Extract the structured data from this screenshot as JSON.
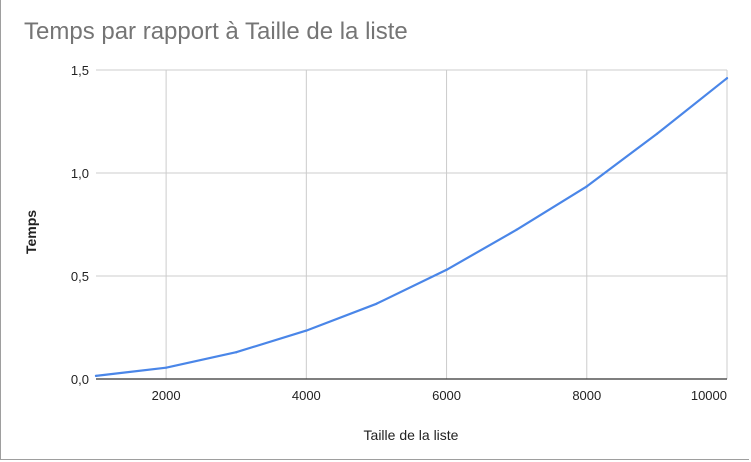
{
  "chart_data": {
    "type": "line",
    "title": "Temps par rapport à Taille de la liste",
    "xlabel": "Taille de la liste",
    "ylabel": "Temps",
    "xlim": [
      1000,
      10000
    ],
    "ylim": [
      0,
      1.5
    ],
    "x_ticks": [
      2000,
      4000,
      6000,
      8000,
      10000
    ],
    "x_tick_labels": [
      "2000",
      "4000",
      "6000",
      "8000",
      "10000"
    ],
    "y_ticks": [
      0,
      0.5,
      1.0,
      1.5
    ],
    "y_tick_labels": [
      "0,0",
      "0,5",
      "1,0",
      "1,5"
    ],
    "grid": true,
    "legend": "none",
    "series": [
      {
        "color": "#4a86e8",
        "x": [
          1000,
          2000,
          3000,
          4000,
          5000,
          6000,
          7000,
          8000,
          9000,
          10000
        ],
        "y": [
          0.015,
          0.055,
          0.13,
          0.235,
          0.365,
          0.53,
          0.725,
          0.935,
          1.19,
          1.46
        ]
      }
    ]
  }
}
